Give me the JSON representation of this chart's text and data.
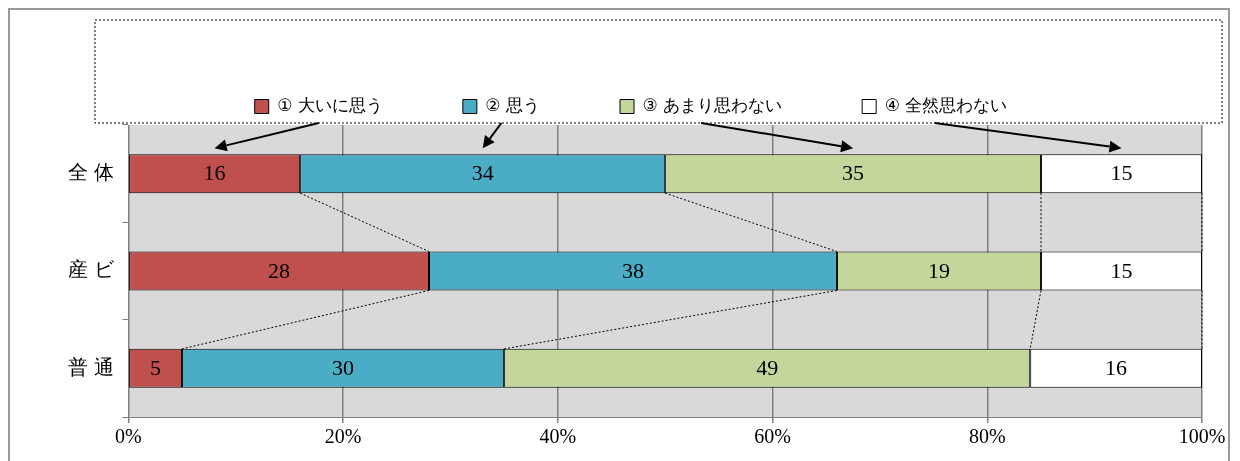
{
  "chart_data": {
    "type": "bar",
    "orientation": "horizontal",
    "stacked": true,
    "categories": [
      "全 体",
      "産 ビ",
      "普 通"
    ],
    "series": [
      {
        "name": "① 大いに思う",
        "color": "#c0504d",
        "values": [
          16,
          28,
          5
        ]
      },
      {
        "name": "② 思う",
        "color": "#4bacc6",
        "values": [
          34,
          38,
          30
        ]
      },
      {
        "name": "③ あまり思わない",
        "color": "#c3d69b",
        "values": [
          35,
          19,
          49
        ]
      },
      {
        "name": "④ 全然思わない",
        "color": "#ffffff",
        "values": [
          15,
          15,
          16
        ]
      }
    ],
    "xlim": [
      0,
      100
    ],
    "xticks": [
      {
        "value": 0,
        "label": "0%"
      },
      {
        "value": 20,
        "label": "20%"
      },
      {
        "value": 40,
        "label": "40%"
      },
      {
        "value": 60,
        "label": "60%"
      },
      {
        "value": 80,
        "label": "80%"
      },
      {
        "value": 100,
        "label": "100%"
      }
    ],
    "grid": "x",
    "legend": "top",
    "data_labels": true
  }
}
